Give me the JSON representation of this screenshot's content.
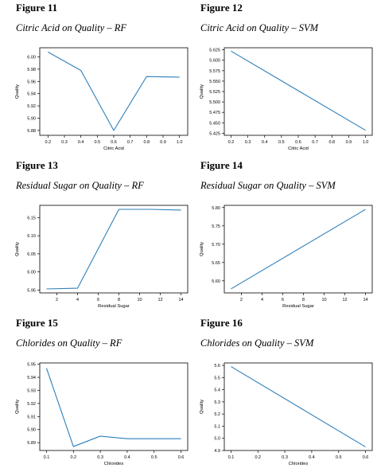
{
  "figures": [
    {
      "label": "Figure 11",
      "caption": "Citric Acid on Quality – RF",
      "chart_data": {
        "type": "line",
        "xlabel": "Citric Acid",
        "ylabel": "Quality",
        "x": [
          0.2,
          0.4,
          0.6,
          0.8,
          1.0
        ],
        "series": [
          {
            "values": [
              6.008,
              5.978,
              5.88,
              5.968,
              5.967
            ]
          }
        ],
        "xlim": [
          0.15,
          1.05
        ],
        "ylim": [
          5.872,
          6.015
        ],
        "xticks": [
          0.2,
          0.3,
          0.4,
          0.5,
          0.6,
          0.7,
          0.8,
          0.9,
          1.0
        ],
        "xticklabels": [
          "0.2",
          "0.3",
          "0.4",
          "0.5",
          "0.6",
          "0.7",
          "0.8",
          "0.9",
          "1.0"
        ],
        "yticks": [
          5.88,
          5.9,
          5.92,
          5.94,
          5.96,
          5.98,
          6.0
        ],
        "yticklabels": [
          "5.88",
          "5.90",
          "5.92",
          "5.94",
          "5.96",
          "5.98",
          "6.00"
        ],
        "color": "#2e7fba"
      }
    },
    {
      "label": "Figure 12",
      "caption": "Citric Acid on Quality – SVM",
      "chart_data": {
        "type": "line",
        "xlabel": "Citric Acid",
        "ylabel": "Quality",
        "x": [
          0.2,
          1.0
        ],
        "series": [
          {
            "values": [
              5.622,
              5.432
            ]
          }
        ],
        "xlim": [
          0.16,
          1.04
        ],
        "ylim": [
          5.42,
          5.63
        ],
        "xticks": [
          0.2,
          0.3,
          0.4,
          0.5,
          0.6,
          0.7,
          0.8,
          0.9,
          1.0
        ],
        "xticklabels": [
          "0.2",
          "0.3",
          "0.4",
          "0.5",
          "0.6",
          "0.7",
          "0.8",
          "0.9",
          "1.0"
        ],
        "yticks": [
          5.425,
          5.45,
          5.475,
          5.5,
          5.525,
          5.55,
          5.575,
          5.6,
          5.625
        ],
        "yticklabels": [
          "5.425",
          "5.450",
          "5.475",
          "5.500",
          "5.525",
          "5.550",
          "5.575",
          "5.600",
          "5.625"
        ],
        "color": "#2e7fba"
      }
    },
    {
      "label": "Figure 13",
      "caption": "Residual Sugar on Quality – RF",
      "chart_data": {
        "type": "line",
        "xlabel": "Residual Sugar",
        "ylabel": "Quality",
        "x": [
          1,
          4,
          8,
          11,
          14
        ],
        "series": [
          {
            "values": [
              5.953,
              5.955,
              6.173,
              6.173,
              6.171
            ]
          }
        ],
        "xlim": [
          0.35,
          14.65
        ],
        "ylim": [
          5.942,
          6.184
        ],
        "xticks": [
          2,
          4,
          6,
          8,
          10,
          12,
          14
        ],
        "xticklabels": [
          "2",
          "4",
          "6",
          "8",
          "10",
          "12",
          "14"
        ],
        "yticks": [
          5.95,
          6.0,
          6.05,
          6.1,
          6.15
        ],
        "yticklabels": [
          "5.95",
          "6.00",
          "6.05",
          "6.10",
          "6.15"
        ],
        "color": "#2e7fba"
      }
    },
    {
      "label": "Figure 14",
      "caption": "Residual Sugar on Quality – SVM",
      "chart_data": {
        "type": "line",
        "xlabel": "Residual Sugar",
        "ylabel": "Quality",
        "x": [
          1,
          14
        ],
        "series": [
          {
            "values": [
              5.578,
              5.795
            ]
          }
        ],
        "xlim": [
          0.35,
          14.65
        ],
        "ylim": [
          5.567,
          5.806
        ],
        "xticks": [
          2,
          4,
          6,
          8,
          10,
          12,
          14
        ],
        "xticklabels": [
          "2",
          "4",
          "6",
          "8",
          "10",
          "12",
          "14"
        ],
        "yticks": [
          5.6,
          5.65,
          5.7,
          5.75,
          5.8
        ],
        "yticklabels": [
          "5.60",
          "5.65",
          "5.70",
          "5.75",
          "5.80"
        ],
        "color": "#2e7fba"
      }
    },
    {
      "label": "Figure 15",
      "caption": "Chlorides on Quality – RF",
      "chart_data": {
        "type": "line",
        "xlabel": "Chlorides",
        "ylabel": "Quality",
        "x": [
          0.1,
          0.2,
          0.3,
          0.4,
          0.5,
          0.6
        ],
        "series": [
          {
            "values": [
              5.947,
              5.887,
              5.895,
              5.893,
              5.893,
              5.893
            ]
          }
        ],
        "xlim": [
          0.075,
          0.625
        ],
        "ylim": [
          5.884,
          5.951
        ],
        "xticks": [
          0.1,
          0.2,
          0.3,
          0.4,
          0.5,
          0.6
        ],
        "xticklabels": [
          "0.1",
          "0.2",
          "0.3",
          "0.4",
          "0.5",
          "0.6"
        ],
        "yticks": [
          5.89,
          5.9,
          5.91,
          5.92,
          5.93,
          5.94,
          5.95
        ],
        "yticklabels": [
          "5.89",
          "5.90",
          "5.91",
          "5.92",
          "5.93",
          "5.94",
          "5.95"
        ],
        "color": "#2e7fba"
      }
    },
    {
      "label": "Figure 16",
      "caption": "Chlorides on Quality – SVM",
      "chart_data": {
        "type": "line",
        "xlabel": "Chlorides",
        "ylabel": "Quality",
        "x": [
          0.1,
          0.6
        ],
        "series": [
          {
            "values": [
              5.59,
              4.93
            ]
          }
        ],
        "xlim": [
          0.075,
          0.625
        ],
        "ylim": [
          4.9,
          5.62
        ],
        "xticks": [
          0.1,
          0.2,
          0.3,
          0.4,
          0.5,
          0.6
        ],
        "xticklabels": [
          "0.1",
          "0.2",
          "0.3",
          "0.4",
          "0.5",
          "0.6"
        ],
        "yticks": [
          4.9,
          5.0,
          5.1,
          5.2,
          5.3,
          5.4,
          5.5,
          5.6
        ],
        "yticklabels": [
          "4.9",
          "5.0",
          "5.1",
          "5.2",
          "5.3",
          "5.4",
          "5.5",
          "5.6"
        ],
        "color": "#2e7fba"
      }
    }
  ]
}
